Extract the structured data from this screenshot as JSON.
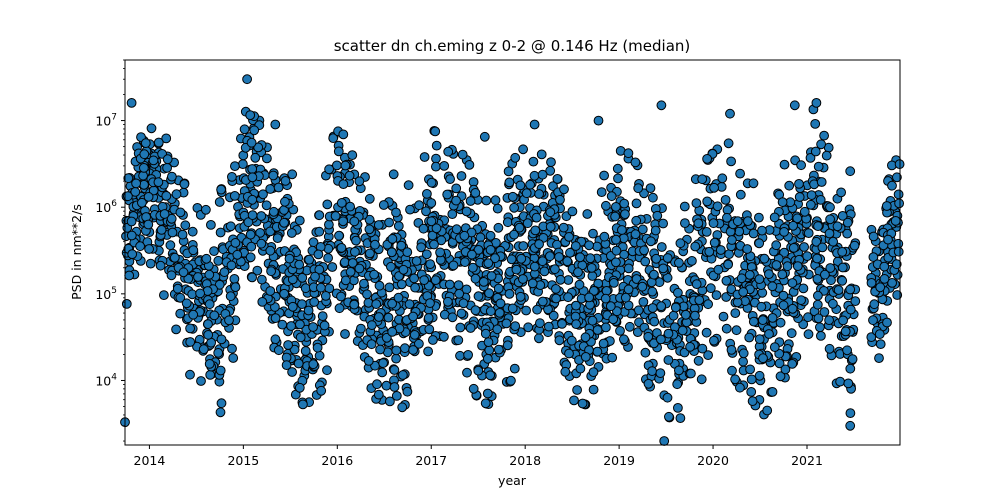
{
  "chart_data": {
    "type": "scatter",
    "title": "scatter dn ch.eming z 0-2 @ 0.146 Hz (median)",
    "xlabel": "year",
    "ylabel": "PSD in nm**2/s",
    "y_scale": "log",
    "xlim": [
      2013.74,
      2021.99
    ],
    "ylim": [
      1800,
      50000000
    ],
    "x_ticks": [
      2014,
      2015,
      2016,
      2017,
      2018,
      2019,
      2020,
      2021
    ],
    "x_tick_labels": [
      "2014",
      "2015",
      "2016",
      "2017",
      "2018",
      "2019",
      "2020",
      "2021"
    ],
    "y_ticks": [
      10000,
      100000,
      1000000,
      10000000
    ],
    "y_tick_labels": [
      "10^4",
      "10^5",
      "10^6",
      "10^7"
    ],
    "grid": false,
    "marker_color": "#1f77b4",
    "marker_edge_color": "#000000",
    "envelope": {
      "x": [
        2013.75,
        2013.82,
        2013.95,
        2014.1,
        2014.3,
        2014.55,
        2014.75,
        2014.95,
        2015.05,
        2015.2,
        2015.45,
        2015.65,
        2015.85,
        2016.0,
        2016.2,
        2016.45,
        2016.6,
        2016.85,
        2017.0,
        2017.3,
        2017.5,
        2017.65,
        2017.85,
        2018.05,
        2018.3,
        2018.5,
        2018.7,
        2018.85,
        2019.05,
        2019.2,
        2019.45,
        2019.6,
        2019.85,
        2020.0,
        2020.15,
        2020.4,
        2020.55,
        2020.75,
        2020.9,
        2021.05,
        2021.2,
        2021.35,
        2021.47,
        2021.62,
        2021.75,
        2021.9,
        2021.99
      ],
      "y_high": [
        2000000,
        5000000,
        12000000,
        10000000,
        3000000,
        800000,
        1500000,
        4000000,
        25000000,
        8000000,
        2000000,
        500000,
        2000000,
        10000000,
        4000000,
        1500000,
        1000000,
        2500000,
        8000000,
        5000000,
        2000000,
        1000000,
        3000000,
        8000000,
        3000000,
        1000000,
        800000,
        2500000,
        5000000,
        3000000,
        1000000,
        500000,
        3000000,
        10000000,
        6000000,
        2000000,
        1500000,
        3000000,
        5000000,
        15000000,
        6000000,
        2500000,
        800000,
        500000,
        600000,
        3000000,
        4000000
      ],
      "y_low": [
        60000,
        150000,
        300000,
        150000,
        30000,
        5000,
        4000,
        30000,
        150000,
        60000,
        10000,
        5000,
        8000,
        50000,
        20000,
        5000,
        4000,
        7000,
        30000,
        20000,
        6000,
        5000,
        10000,
        40000,
        20000,
        6000,
        5000,
        8000,
        30000,
        15000,
        5000,
        3000,
        8000,
        30000,
        15000,
        5000,
        4000,
        10000,
        20000,
        40000,
        15000,
        8000,
        4000,
        10000,
        15000,
        80000,
        100000
      ]
    },
    "outliers": [
      {
        "x": 2013.74,
        "y": 3300
      },
      {
        "x": 2013.81,
        "y": 16000000
      },
      {
        "x": 2015.04,
        "y": 30000000
      },
      {
        "x": 2015.34,
        "y": 9000000
      },
      {
        "x": 2015.52,
        "y": 2400000
      },
      {
        "x": 2016.6,
        "y": 2400000
      },
      {
        "x": 2017.57,
        "y": 6500000
      },
      {
        "x": 2018.1,
        "y": 9000000
      },
      {
        "x": 2018.78,
        "y": 10000000
      },
      {
        "x": 2019.45,
        "y": 15000000
      },
      {
        "x": 2019.48,
        "y": 2000
      },
      {
        "x": 2020.18,
        "y": 12000000
      },
      {
        "x": 2020.87,
        "y": 15000000
      },
      {
        "x": 2021.1,
        "y": 16000000
      },
      {
        "x": 2021.46,
        "y": 2600000
      },
      {
        "x": 2021.46,
        "y": 3000
      }
    ]
  }
}
